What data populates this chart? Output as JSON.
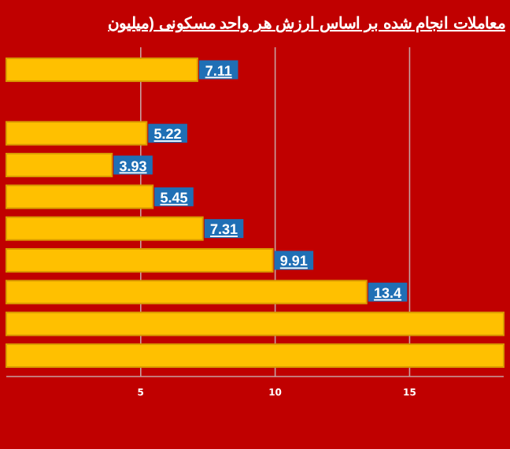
{
  "chart_data": {
    "type": "bar",
    "orientation": "horizontal",
    "title": "معاملات انجام شده بر اساس ارزش هر واحد مسکونی (میلیون",
    "categories": [
      null,
      null,
      null,
      null,
      null,
      null,
      null,
      null,
      null,
      null
    ],
    "values": [
      7.11,
      null,
      5.22,
      3.93,
      5.45,
      7.31,
      9.91,
      13.4,
      18.5,
      18.5
    ],
    "value_labels": [
      "7.11",
      null,
      "5.22",
      "3.93",
      "5.45",
      "7.31",
      "9.91",
      "13.4",
      null,
      null
    ],
    "color": "#ffc000",
    "xlim": [
      0,
      18.5
    ],
    "xticks": [
      5,
      10,
      15
    ],
    "grid": "x",
    "tick_labels": "x"
  }
}
